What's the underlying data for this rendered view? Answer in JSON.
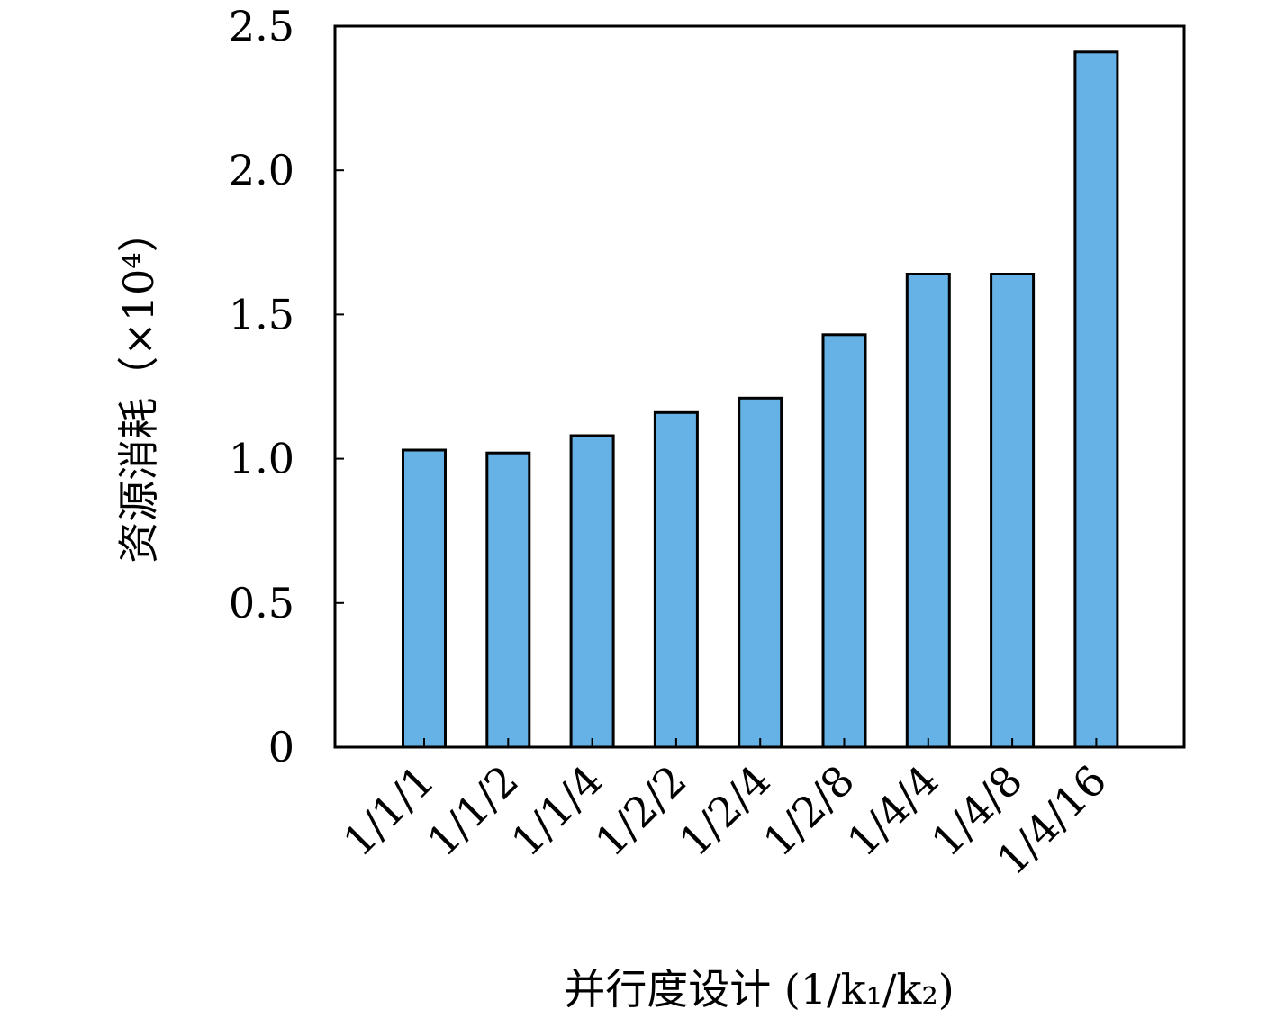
{
  "chart_data": {
    "type": "bar",
    "categories": [
      "1/1/1",
      "1/1/2",
      "1/1/4",
      "1/2/2",
      "1/2/4",
      "1/2/8",
      "1/4/4",
      "1/4/8",
      "1/4/16"
    ],
    "series": [
      {
        "values": [
          1.03,
          1.02,
          1.08,
          1.16,
          1.21,
          1.43,
          1.64,
          1.64,
          2.41
        ]
      }
    ],
    "ylim": [
      0,
      2.5
    ],
    "yticks": [
      "0",
      "0.5",
      "1.0",
      "1.5",
      "2.0",
      "2.5"
    ],
    "ylabel": "资源消耗（×10⁴）",
    "xlabel": "并行度设计 (1/k₁/k₂)",
    "bar_color": "#66b2e6",
    "grid": false
  }
}
